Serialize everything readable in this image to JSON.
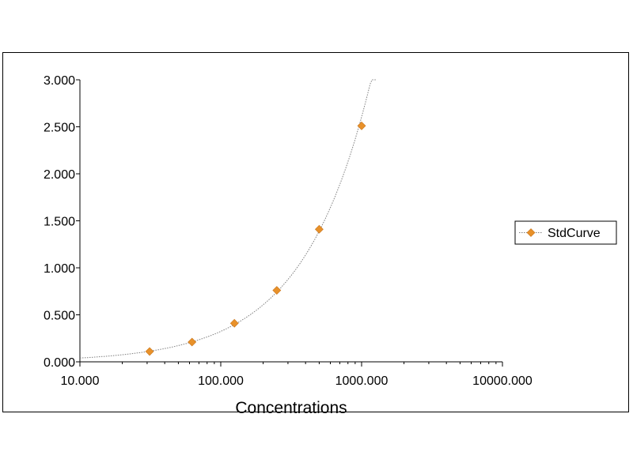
{
  "chart_data": {
    "type": "scatter",
    "xlabel": "Concentrations",
    "ylabel": "",
    "xscale": "log",
    "xlim": [
      10,
      10000
    ],
    "ylim": [
      0,
      3
    ],
    "x_tick_labels": [
      "10.000",
      "100.000",
      "1000.000",
      "10000.000"
    ],
    "y_tick_labels": [
      "0.000",
      "0.500",
      "1.000",
      "1.500",
      "2.000",
      "2.500",
      "3.000"
    ],
    "grid": false,
    "legend_position": "right",
    "series": [
      {
        "name": "StdCurve",
        "marker": "diamond",
        "color": "#E8912A",
        "line_style": "dotted",
        "line_color": "#7f7f7f",
        "x": [
          31.25,
          62.5,
          125,
          250,
          500,
          1000
        ],
        "y": [
          0.11,
          0.21,
          0.41,
          0.76,
          1.41,
          2.51
        ]
      }
    ],
    "fit_curve": {
      "description": "dotted trend line",
      "x_range": [
        10,
        1260
      ]
    }
  }
}
